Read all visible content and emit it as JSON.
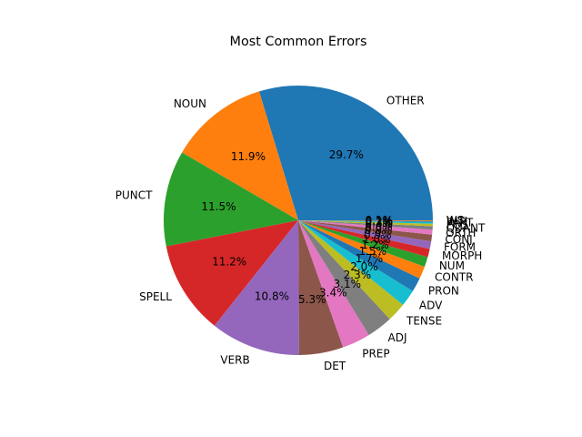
{
  "chart_data": {
    "type": "pie",
    "title": "Most Common Errors",
    "start_angle_deg": 0,
    "counterclock": true,
    "slices": [
      {
        "label": "OTHER",
        "value": 29.7,
        "pct_text": "29.7%",
        "color": "#1f77b4"
      },
      {
        "label": "NOUN",
        "value": 11.9,
        "pct_text": "11.9%",
        "color": "#ff7f0e"
      },
      {
        "label": "PUNCT",
        "value": 11.5,
        "pct_text": "11.5%",
        "color": "#2ca02c"
      },
      {
        "label": "SPELL",
        "value": 11.2,
        "pct_text": "11.2%",
        "color": "#d62728"
      },
      {
        "label": "VERB",
        "value": 10.8,
        "pct_text": "10.8%",
        "color": "#9467bd"
      },
      {
        "label": "DET",
        "value": 5.3,
        "pct_text": "5.3%",
        "color": "#8c564b"
      },
      {
        "label": "PREP",
        "value": 3.4,
        "pct_text": "3.4%",
        "color": "#e377c2"
      },
      {
        "label": "ADJ",
        "value": 3.1,
        "pct_text": "3.1%",
        "color": "#7f7f7f"
      },
      {
        "label": "TENSE",
        "value": 2.3,
        "pct_text": "2.3%",
        "color": "#bcbd22"
      },
      {
        "label": "ADV",
        "value": 2.0,
        "pct_text": "2.0%",
        "color": "#17becf"
      },
      {
        "label": "PRON",
        "value": 1.7,
        "pct_text": "1.7%",
        "color": "#1f77b4"
      },
      {
        "label": "CONTR",
        "value": 1.5,
        "pct_text": "1.5%",
        "color": "#ff7f0e"
      },
      {
        "label": "NUM",
        "value": 1.2,
        "pct_text": "1.2%",
        "color": "#2ca02c"
      },
      {
        "label": "MORPH",
        "value": 1.0,
        "pct_text": "1.0%",
        "color": "#d62728"
      },
      {
        "label": "FORM",
        "value": 0.9,
        "pct_text": "0.9%",
        "color": "#9467bd"
      },
      {
        "label": "CONJ",
        "value": 0.8,
        "pct_text": "0.8%",
        "color": "#8c564b"
      },
      {
        "label": "ORTH",
        "value": 0.6,
        "pct_text": "0.6%",
        "color": "#e377c2"
      },
      {
        "label": "QUANT",
        "value": 0.4,
        "pct_text": "0.4%",
        "color": "#7f7f7f"
      },
      {
        "label": "POS",
        "value": 0.3,
        "pct_text": "0.3%",
        "color": "#bcbd22"
      },
      {
        "label": "PART",
        "value": 0.2,
        "pct_text": "0.2%",
        "color": "#17becf"
      },
      {
        "label": "INTJ",
        "value": 0.1,
        "pct_text": "0.1%",
        "color": "#1f77b4"
      },
      {
        "label": "WS",
        "value": 0.1,
        "pct_text": "0.1%",
        "color": "#ff7f0e"
      }
    ]
  }
}
